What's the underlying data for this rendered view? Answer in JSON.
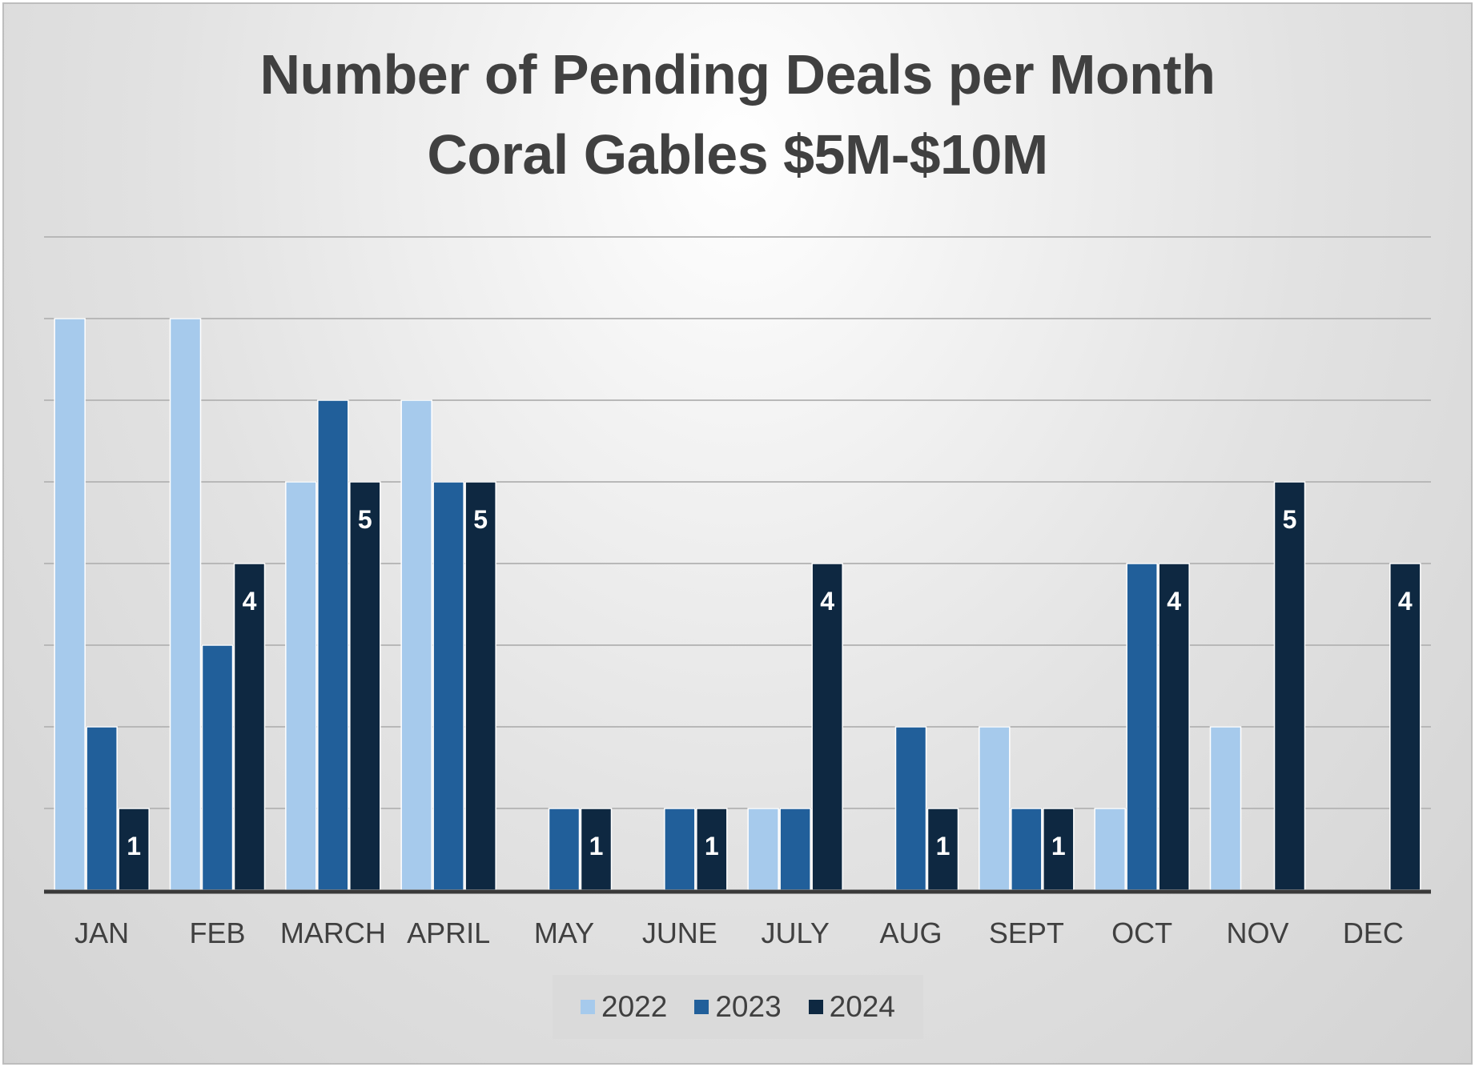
{
  "chart_data": {
    "type": "bar",
    "title": "Number of Pending Deals per Month",
    "subtitle": "Coral Gables $5M-$10M",
    "xlabel": "",
    "ylabel": "",
    "categories": [
      "JAN",
      "FEB",
      "MARCH",
      "APRIL",
      "MAY",
      "JUNE",
      "JULY",
      "AUG",
      "SEPT",
      "OCT",
      "NOV",
      "DEC"
    ],
    "series": [
      {
        "name": "2022",
        "color": "#a6caec",
        "values": [
          7,
          7,
          5,
          6,
          0,
          0,
          1,
          0,
          2,
          1,
          2,
          0
        ]
      },
      {
        "name": "2023",
        "color": "#215f9a",
        "values": [
          2,
          3,
          6,
          5,
          1,
          1,
          1,
          2,
          1,
          4,
          0,
          0
        ]
      },
      {
        "name": "2024",
        "color": "#0e2841",
        "values": [
          1,
          4,
          5,
          5,
          1,
          1,
          4,
          1,
          1,
          4,
          5,
          4
        ]
      }
    ],
    "data_labels": {
      "series": "2024",
      "values": [
        "1",
        "4",
        "5",
        "5",
        "1",
        "1",
        "4",
        "1",
        "1",
        "4",
        "5",
        "4"
      ]
    },
    "ylim": [
      0,
      8
    ],
    "y_axis_visible": false,
    "grid": true,
    "legend_position": "bottom"
  }
}
